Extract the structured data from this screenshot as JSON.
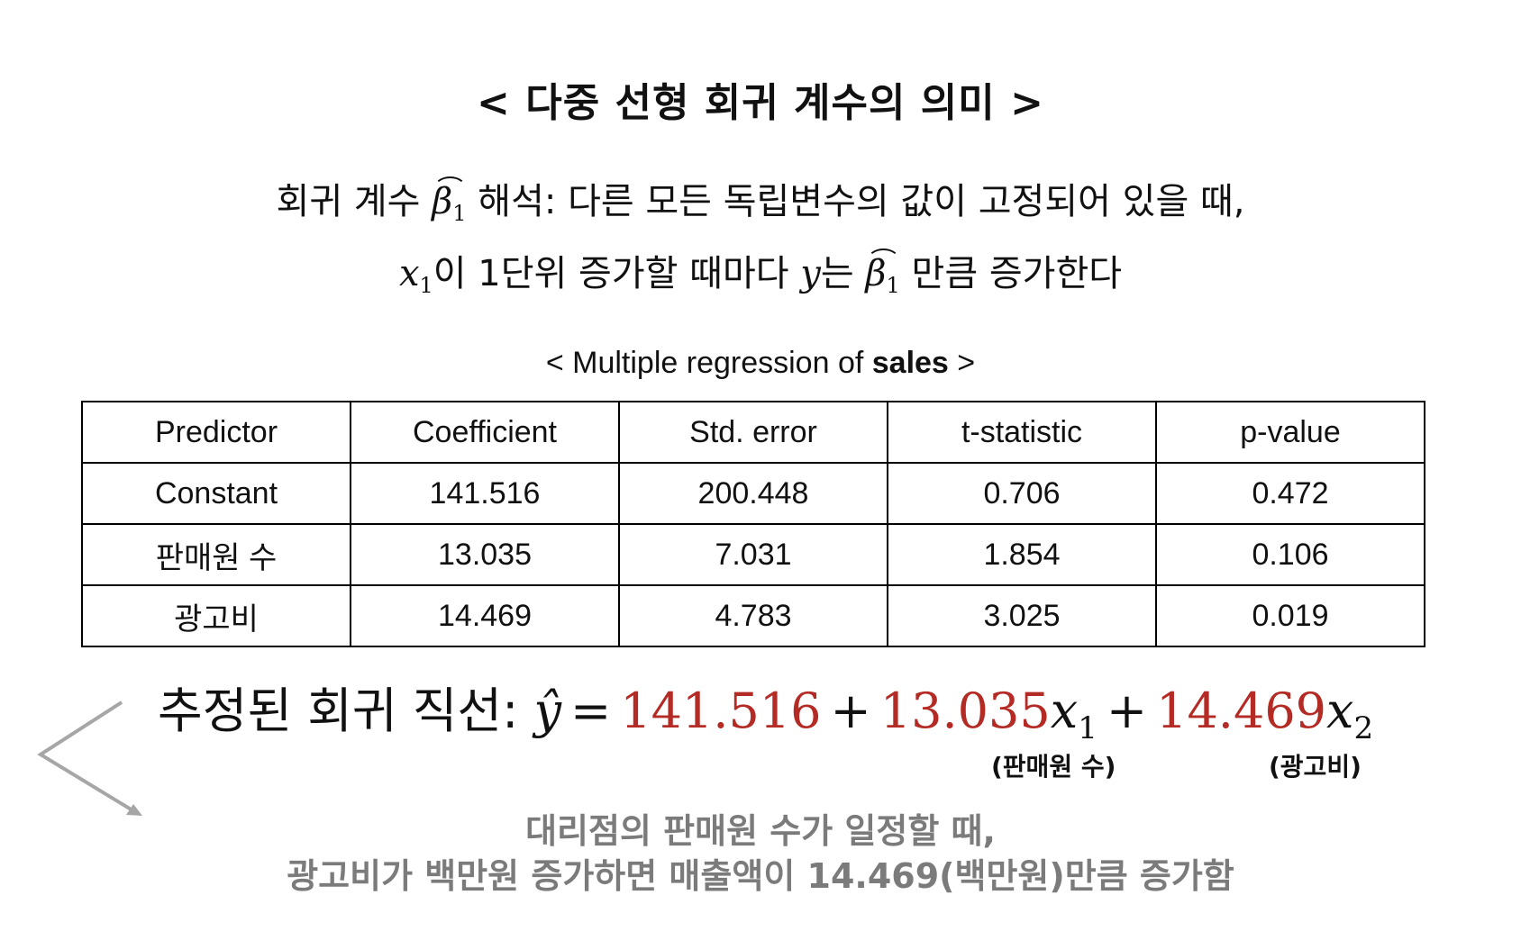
{
  "title": "< 다중 선형 회귀 계수의 의미 >",
  "description": {
    "line1_prefix": "회귀 계수 ",
    "line1_symbol": "β",
    "line1_subscript": "1",
    "line1_suffix": " 해석: 다른 모든 독립변수의 값이 고정되어 있을 때,",
    "line2_var": "x",
    "line2_var_sub": "1",
    "line2_part1": "이 1단위 증가할 때마다 ",
    "line2_y": "y",
    "line2_part2": "는 ",
    "line2_symbol": "β",
    "line2_subscript": "1",
    "line2_part3": " 만큼 증가한다"
  },
  "table": {
    "caption_prefix": "< Multiple regression of ",
    "caption_bold": "sales",
    "caption_suffix": " >",
    "headers": [
      "Predictor",
      "Coefficient",
      "Std. error",
      "t-statistic",
      "p-value"
    ],
    "rows": [
      [
        "Constant",
        "141.516",
        "200.448",
        "0.706",
        "0.472"
      ],
      [
        "판매원 수",
        "13.035",
        "7.031",
        "1.854",
        "0.106"
      ],
      [
        "광고비",
        "14.469",
        "4.783",
        "3.025",
        "0.019"
      ]
    ]
  },
  "equation": {
    "label": "추정된 회귀 직선: ",
    "yhat": "ŷ",
    "equals": "=",
    "intercept": "141.516",
    "plus1": "+",
    "coef1": "13.035",
    "var1": "x",
    "var1_sub": "1",
    "plus2": "+",
    "coef2": "14.469",
    "var2": "x",
    "var2_sub": "2",
    "note1": "(판매원 수)",
    "note2": "(광고비)"
  },
  "footnote": {
    "line1": "대리점의 판매원 수가 일정할 때,",
    "line2": "광고비가 백만원 증가하면 매출액이 14.469(백만원)만큼 증가함"
  },
  "colors": {
    "highlight": "#b32b24",
    "footnote": "#7b7b7b",
    "arrow": "#a6a6a6"
  }
}
